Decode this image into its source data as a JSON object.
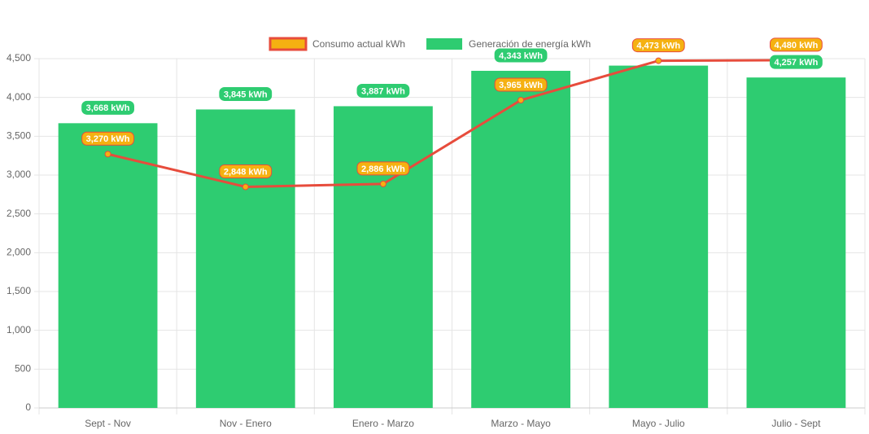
{
  "chart_data": {
    "type": "bar",
    "categories": [
      "Sept - Nov",
      "Nov - Enero",
      "Enero - Marzo",
      "Marzo - Mayo",
      "Mayo - Julio",
      "Julio - Sept"
    ],
    "series": [
      {
        "name": "Consumo actual kWh",
        "type": "line",
        "color": "#e74c3c",
        "fill": "#f5b111",
        "values": [
          3270,
          2848,
          2886,
          3965,
          4473,
          4480
        ],
        "value_labels": [
          "3,270 kWh",
          "2,848 kWh",
          "2,886 kWh",
          "3,965 kWh",
          "4,473 kWh",
          "4,480 kWh"
        ]
      },
      {
        "name": "Generación de energía kWh",
        "type": "bar",
        "color": "#2ecc71",
        "values": [
          3668,
          3845,
          3887,
          4343,
          4410,
          4257
        ],
        "value_labels": [
          "3,668 kWh",
          "3,845 kWh",
          "3,887 kWh",
          "4,343 kWh",
          null,
          "4,257 kWh"
        ]
      }
    ],
    "ylim": [
      0,
      4500
    ],
    "yticks": [
      0,
      500,
      {
        "value": 1000,
        "label": "1,000"
      },
      {
        "value": 1500,
        "label": "1,500"
      },
      {
        "value": 2000,
        "label": "2,000"
      },
      {
        "value": 2500,
        "label": "2,500"
      },
      {
        "value": 3000,
        "label": "3,000"
      },
      {
        "value": 3500,
        "label": "3,500"
      },
      {
        "value": 4000,
        "label": "4,000"
      },
      {
        "value": 4500,
        "label": "4,500"
      }
    ],
    "grid": true
  }
}
